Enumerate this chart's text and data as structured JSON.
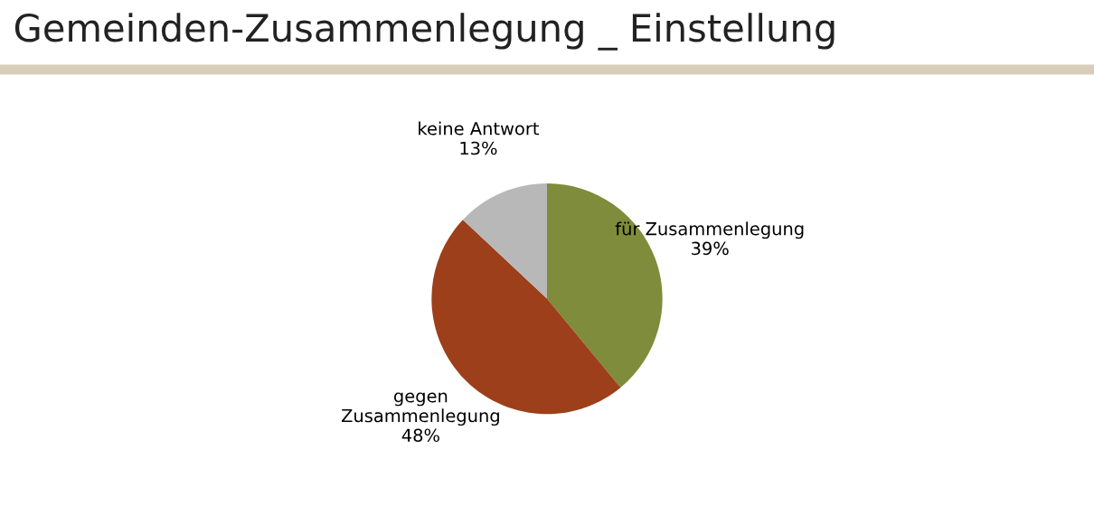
{
  "chart_data": {
    "type": "pie",
    "title": "Gemeinden-Zusammenlegung _ Einstellung",
    "categories": [
      "für Zusammenlegung",
      "gegen\nZusammenlegung",
      "keine Antwort"
    ],
    "values": [
      39,
      48,
      13
    ],
    "value_labels": [
      "39%",
      "48%",
      "13%"
    ],
    "colors": [
      "#7f8c3c",
      "#9c3f1a",
      "#b8b8b8"
    ],
    "legend": false
  }
}
